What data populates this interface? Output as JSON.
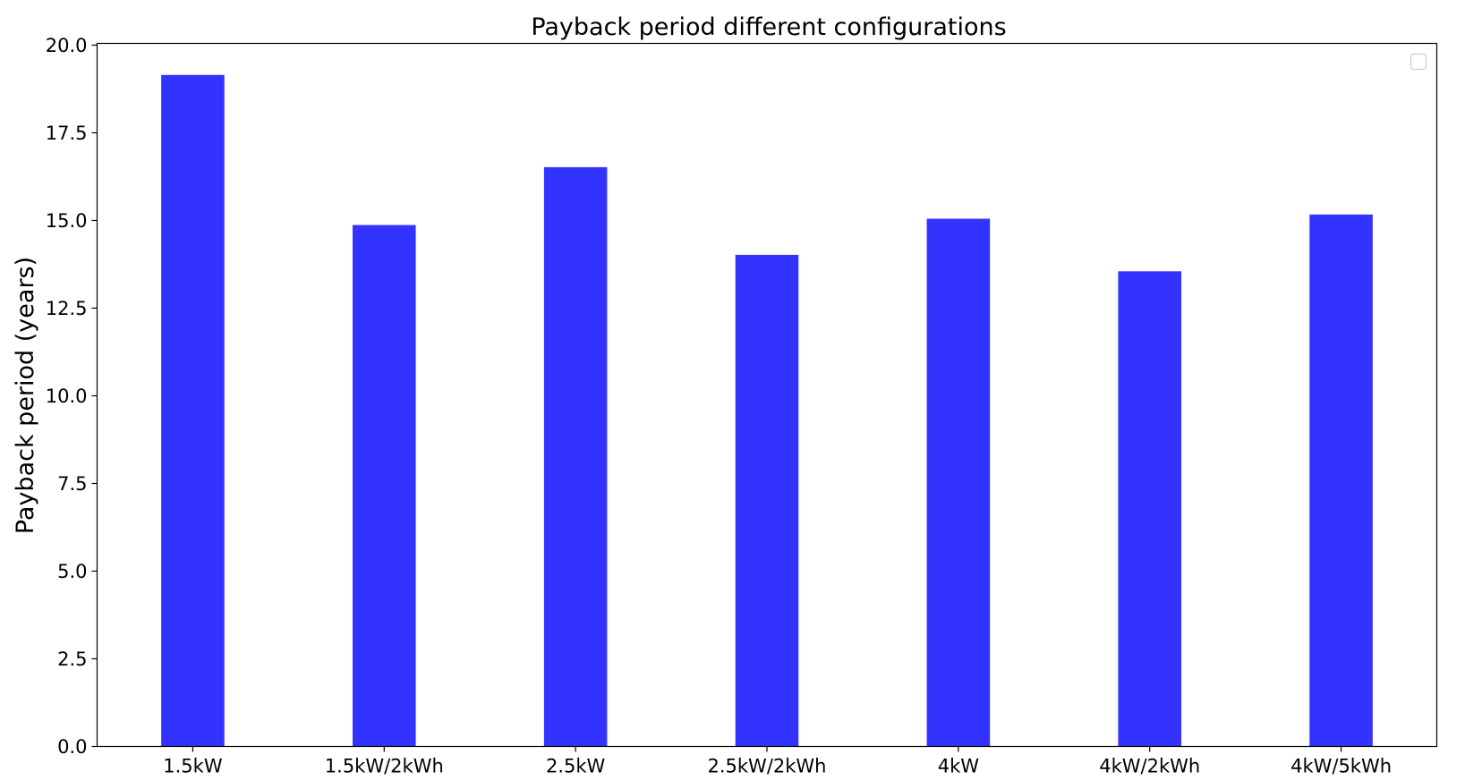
{
  "chart_data": {
    "type": "bar",
    "title": "Payback period different configurations",
    "xlabel": "",
    "ylabel": "Payback period (years)",
    "categories": [
      "1.5kW",
      "1.5kW/2kWh",
      "2.5kW",
      "2.5kW/2kWh",
      "4kW",
      "4kW/2kWh",
      "4kW/5kWh"
    ],
    "values": [
      19.15,
      14.87,
      16.52,
      14.02,
      15.05,
      13.55,
      15.17
    ],
    "ylim": [
      0,
      20.05
    ],
    "yticks": [
      "0.0",
      "2.5",
      "5.0",
      "7.5",
      "10.0",
      "12.5",
      "15.0",
      "17.5",
      "20.0"
    ],
    "ytick_values": [
      0,
      2.5,
      5,
      7.5,
      10,
      12.5,
      15,
      17.5,
      20
    ],
    "grid": false,
    "legend": "top-right, empty",
    "bar_color": "#3333ff",
    "colors": {
      "background": "#ffffff",
      "axes": "#000000",
      "legend_border": "#cccccc"
    }
  }
}
